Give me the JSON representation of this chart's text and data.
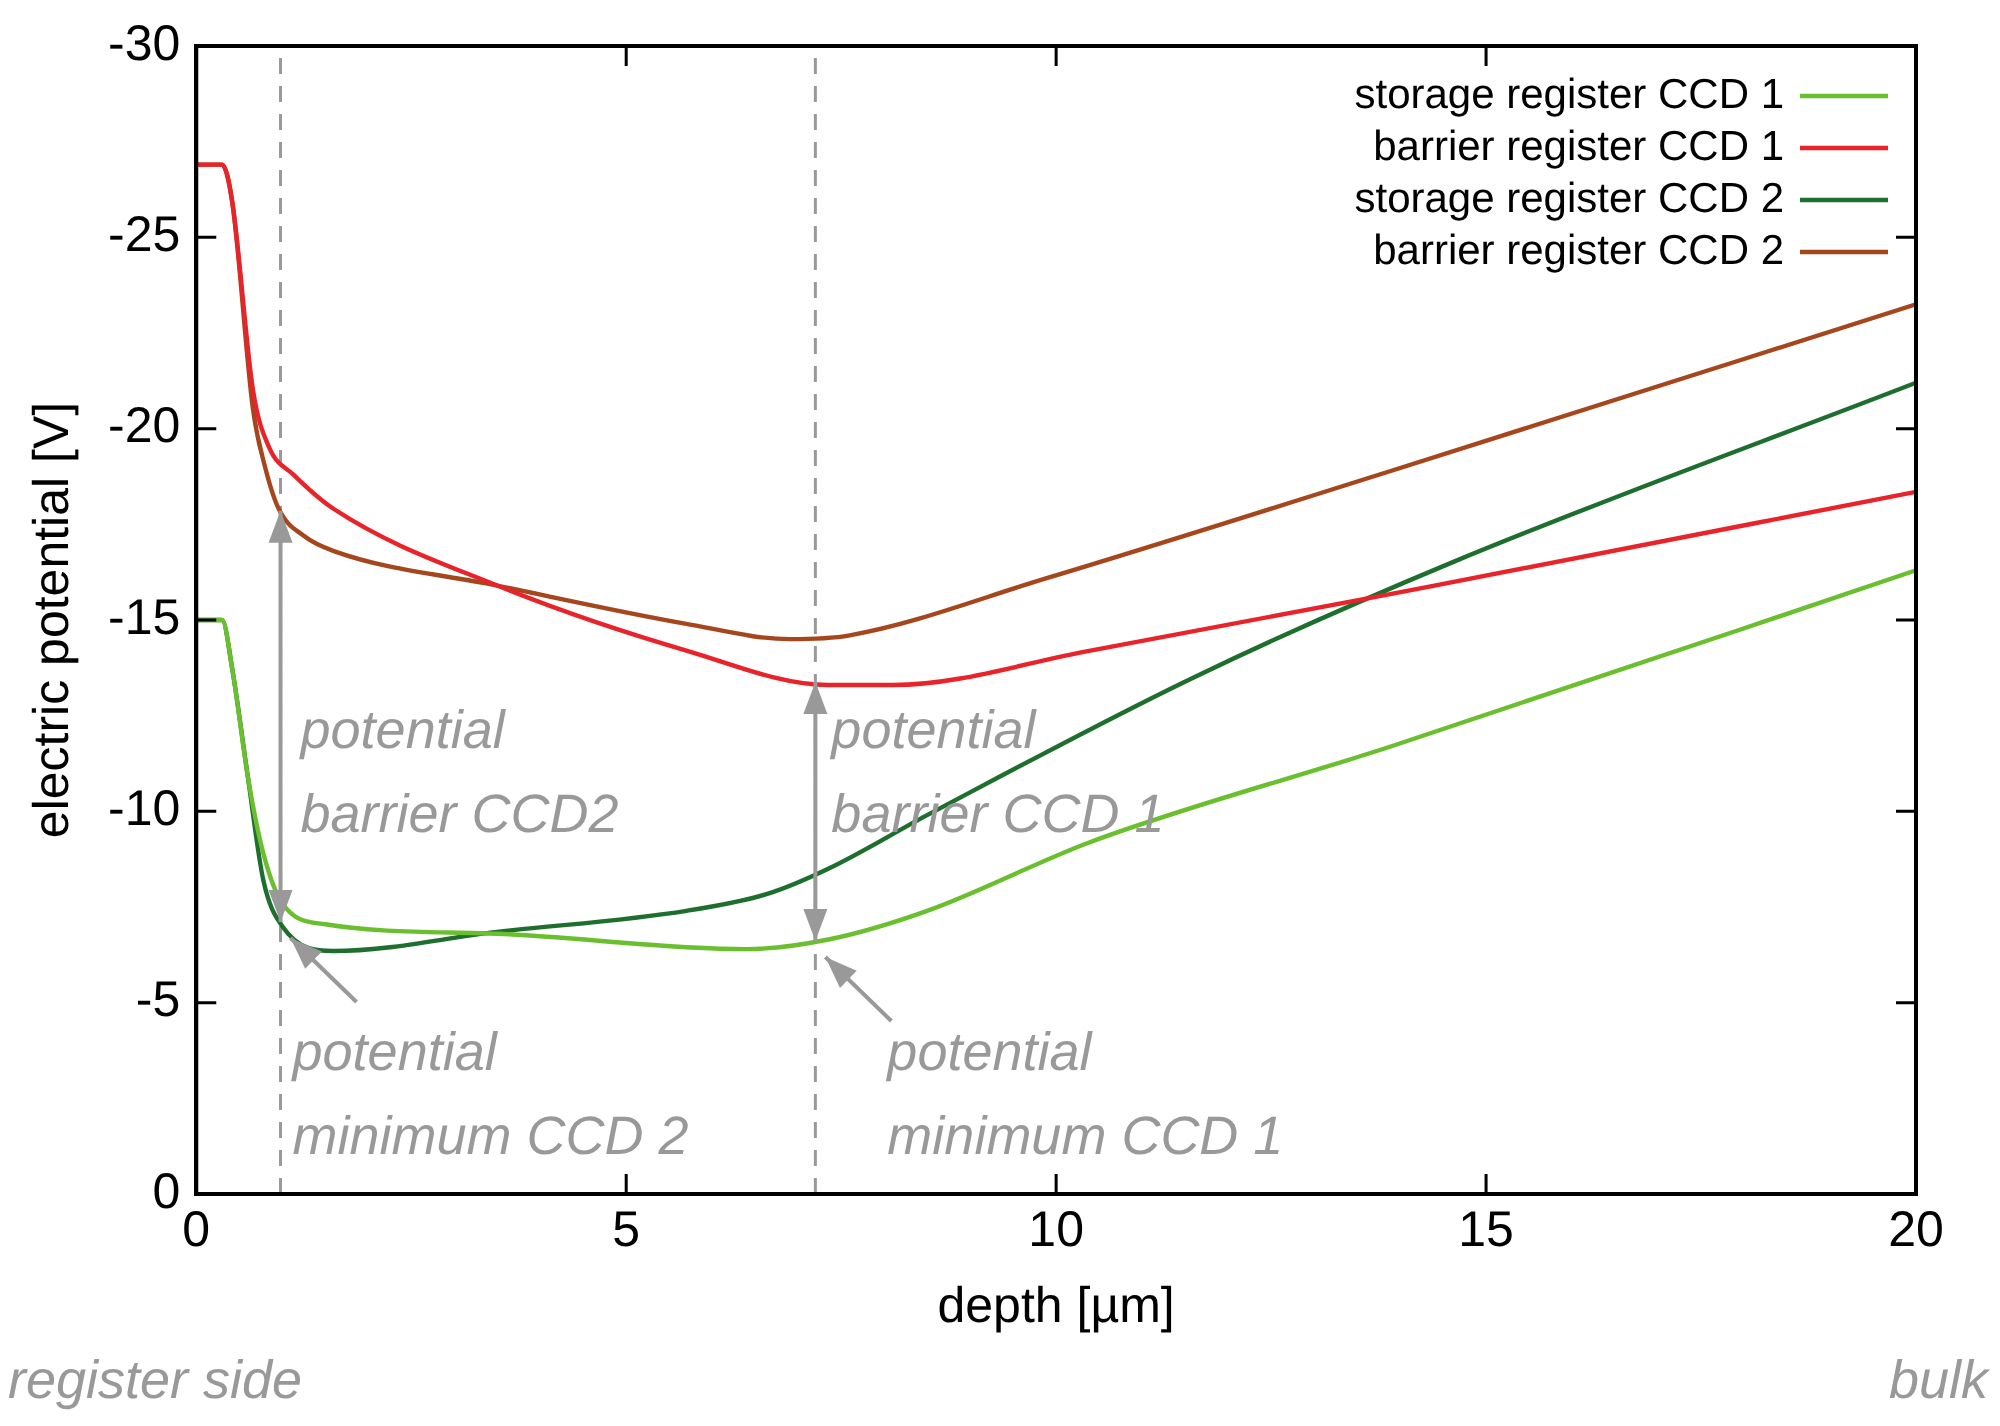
{
  "chart_data": {
    "type": "line",
    "xlabel": "depth [µm]",
    "ylabel": "electric potential [V]",
    "xlim": [
      0,
      20
    ],
    "xticks": [
      0,
      5,
      10,
      15,
      20
    ],
    "ylim": [
      0,
      -30
    ],
    "yticks": [
      0,
      -5,
      -10,
      -15,
      -20,
      -25,
      -30
    ],
    "grid": false,
    "legend": "top right",
    "series": [
      {
        "name": "storage register CCD 1",
        "color": "#6abf2e",
        "x": [
          0,
          0.3,
          0.42,
          0.6,
          0.78,
          1.0,
          1.5,
          3.5,
          5.7,
          6.4,
          7.35,
          8.5,
          10.4,
          13.9,
          20
        ],
        "values": [
          -15,
          -15,
          -13.7,
          -10.9,
          -8.9,
          -7.6,
          -7.05,
          -6.8,
          -6.45,
          -6.4,
          -6.65,
          -7.4,
          -9.2,
          -11.7,
          -16.3
        ]
      },
      {
        "name": "barrier register CCD 1",
        "color": "#e8232a",
        "x": [
          0,
          0.3,
          0.42,
          0.66,
          0.85,
          1.13,
          1.6,
          3.5,
          5.7,
          7.35,
          8.1,
          10.4,
          14.4,
          20
        ],
        "values": [
          -26.9,
          -26.9,
          -25.9,
          -21,
          -19.5,
          -18.8,
          -17.9,
          -15.9,
          -14.2,
          -13.3,
          -13.3,
          -14.2,
          -15.9,
          -18.35
        ]
      },
      {
        "name": "storage register CCD 2",
        "color": "#1e6e2e",
        "x": [
          0,
          0.3,
          0.42,
          0.6,
          0.78,
          1.0,
          1.6,
          3.5,
          5.7,
          6.65,
          7.35,
          8.5,
          11.6,
          14.6,
          20
        ],
        "values": [
          -15,
          -15,
          -13.7,
          -10.9,
          -8.2,
          -7,
          -6.35,
          -6.85,
          -7.4,
          -7.85,
          -8.5,
          -9.9,
          -13.5,
          -16.5,
          -21.2
        ]
      },
      {
        "name": "barrier register CCD 2",
        "color": "#a6461c",
        "x": [
          0,
          0.3,
          0.42,
          0.66,
          0.8,
          0.96,
          1.25,
          1.6,
          3.5,
          5.7,
          6.9,
          7.6,
          9.9,
          13.9,
          20
        ],
        "values": [
          -26.9,
          -26.9,
          -25.9,
          -20.5,
          -19,
          -17.9,
          -17.2,
          -16.8,
          -15.9,
          -14.9,
          -14.5,
          -14.6,
          -16.1,
          -18.9,
          -23.25
        ]
      }
    ],
    "ref_lines": [
      {
        "axis": "x",
        "value": 0.98,
        "color": "#999999",
        "line_style": "dashed"
      },
      {
        "axis": "x",
        "value": 7.2,
        "color": "#999999",
        "line_style": "dashed"
      }
    ],
    "annotations": [
      "potential\nbarrier CCD2",
      "potential\nbarrier CCD 1",
      "potential\nminimum CCD 2",
      "potential\nminimum CCD 1",
      "register side",
      "bulk"
    ]
  }
}
